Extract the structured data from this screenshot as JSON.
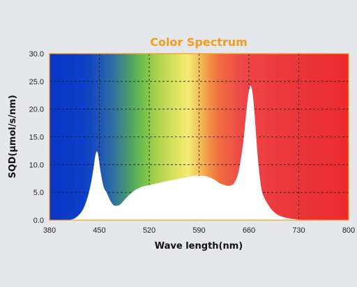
{
  "chart_data": {
    "type": "area",
    "title": "Color Spectrum",
    "xlabel": "Wave length(nm)",
    "ylabel": "SQD(μmol/s/nm)",
    "xlim": [
      380,
      800
    ],
    "ylim": [
      0,
      30
    ],
    "x_ticks": [
      380,
      450,
      520,
      590,
      660,
      730,
      800
    ],
    "x_tick_labels": [
      "380",
      "450",
      "520",
      "590",
      "660",
      "730",
      "800"
    ],
    "y_ticks": [
      0,
      5,
      10,
      15,
      20,
      25,
      30
    ],
    "y_tick_labels": [
      "0.0",
      "5.0",
      "10.0",
      "15.0",
      "20.0",
      "25.0",
      "30.0"
    ],
    "grid": "dashed",
    "fill_color": "#ffffff",
    "frame_color": "#f29d1c",
    "series": [
      {
        "x": [
          405,
          415,
          425,
          432,
          438,
          442,
          445,
          448,
          452,
          456,
          460,
          465,
          470,
          475,
          480,
          490,
          500,
          510,
          520,
          540,
          560,
          580,
          590,
          600,
          610,
          620,
          630,
          638,
          644,
          648,
          652,
          656,
          659,
          662,
          665,
          668,
          672,
          676,
          680,
          690,
          700,
          710,
          720,
          730,
          740,
          750
        ],
        "y": [
          0.0,
          0.3,
          1.5,
          3.5,
          6.5,
          9.5,
          12.0,
          12.0,
          8.5,
          6.0,
          5.0,
          3.6,
          2.7,
          2.6,
          2.9,
          4.3,
          5.4,
          6.0,
          6.3,
          6.9,
          7.4,
          7.9,
          8.0,
          7.9,
          7.4,
          6.6,
          6.2,
          6.5,
          8.0,
          10.5,
          14.0,
          19.0,
          22.5,
          24.2,
          23.0,
          19.0,
          12.0,
          7.0,
          4.5,
          2.2,
          1.0,
          0.5,
          0.25,
          0.1,
          0.03,
          0.0
        ]
      }
    ],
    "spectrum_band": {
      "wavelengths": [
        380,
        430,
        450,
        470,
        490,
        510,
        530,
        560,
        575,
        590,
        605,
        620,
        650,
        700,
        800
      ],
      "colors": [
        "#0a35c4",
        "#0d40c8",
        "#1f55b5",
        "#2f70a0",
        "#4a9a70",
        "#6fbf4e",
        "#a7d24a",
        "#e2e462",
        "#f4ec76",
        "#f5bf58",
        "#f39146",
        "#ef6a3e",
        "#ec4848",
        "#eb3a3d",
        "#ea2a2e"
      ]
    }
  }
}
